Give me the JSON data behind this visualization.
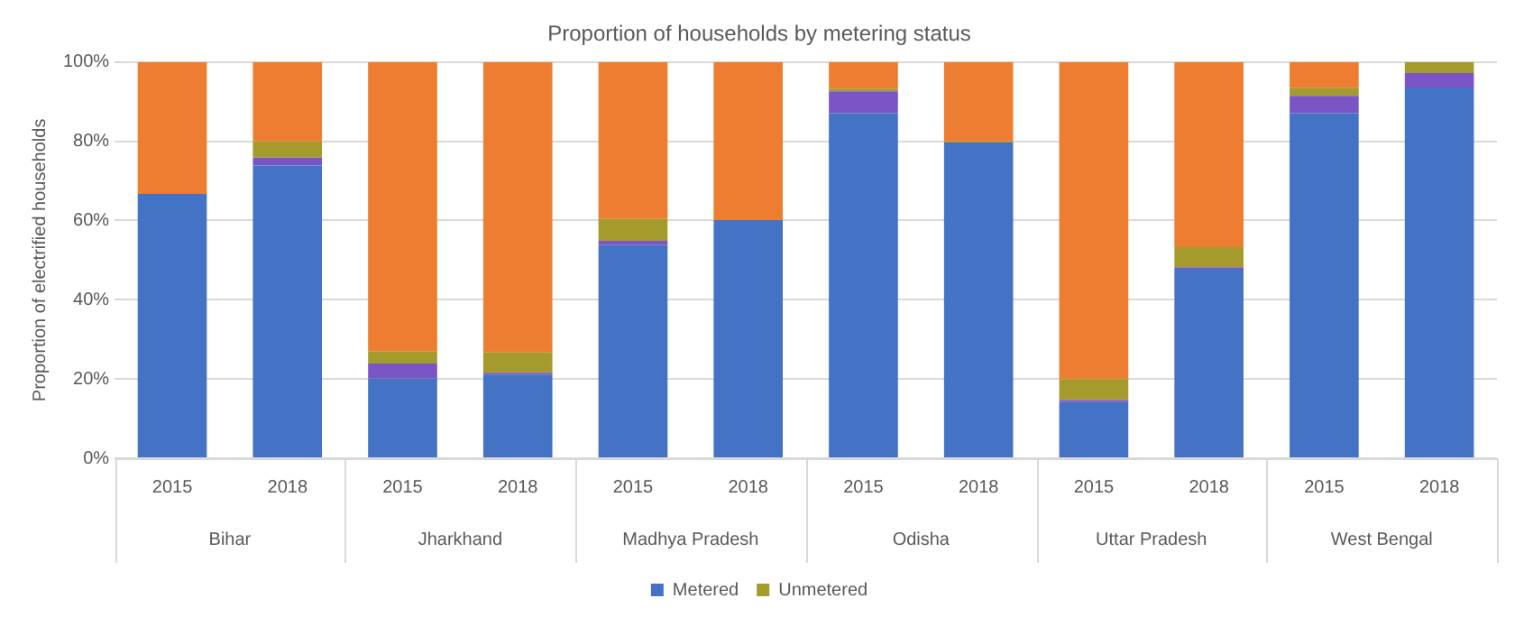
{
  "chart_data": {
    "type": "bar",
    "title": "Proportion of households by metering status",
    "ylabel": "Proportion of electrified households",
    "categories": [
      "2015",
      "2018",
      "2015",
      "2018",
      "2015",
      "2018",
      "2015",
      "2018",
      "2015",
      "2018",
      "2015",
      "2018"
    ],
    "annotations": [
      "Bihar",
      "Jharkhand",
      "Madhya Pradesh",
      "Odisha",
      "Uttar Pradesh",
      "West Bengal"
    ],
    "stacked": true,
    "series": [
      {
        "name": "Metered",
        "color": "#4472c4",
        "values": [
          66.7,
          73.9,
          20.1,
          21.1,
          53.8,
          60.1,
          87.1,
          79.7,
          14.2,
          47.8,
          87.1,
          93.6
        ]
      },
      {
        "color": "#7b55c6",
        "values": [
          0,
          2.0,
          3.8,
          0.5,
          1.1,
          0,
          5.5,
          0,
          0.5,
          0.4,
          4.4,
          3.6
        ]
      },
      {
        "name": "Unmetered",
        "color": "#a59a2c",
        "values": [
          0,
          4.1,
          3.0,
          5.1,
          5.5,
          0,
          0.7,
          0.3,
          5.3,
          5.1,
          2.0,
          2.8
        ]
      },
      {
        "color": "#ed7d31",
        "values": [
          33.3,
          20.0,
          73.1,
          73.3,
          39.6,
          39.9,
          6.7,
          20.0,
          80.0,
          46.7,
          6.5,
          0
        ]
      }
    ],
    "ylim": [
      0,
      100
    ],
    "yticks": [
      {
        "value": 0,
        "label": "0%"
      },
      {
        "value": 20,
        "label": "20%"
      },
      {
        "value": 40,
        "label": "40%"
      },
      {
        "value": 60,
        "label": "60%"
      },
      {
        "value": 80,
        "label": "80%"
      },
      {
        "value": 100,
        "label": "100%"
      }
    ],
    "grid": "y",
    "legend": "bottom"
  }
}
